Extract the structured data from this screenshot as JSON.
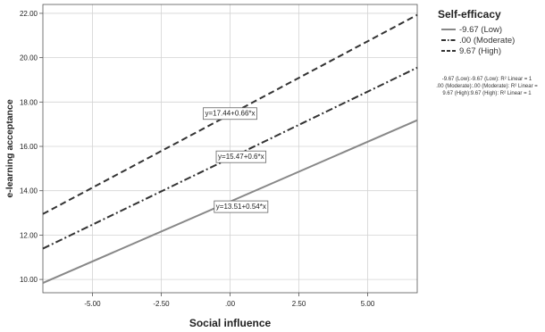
{
  "chart_data": {
    "type": "line",
    "xlabel": "Social influence",
    "ylabel": "e-learning acceptance",
    "xlim": [
      -6.8,
      6.8
    ],
    "ylim": [
      9.4,
      22.4
    ],
    "x_ticks": [
      -5.0,
      -2.5,
      0.0,
      2.5,
      5.0
    ],
    "x_tick_labels": [
      "-5.00",
      "-2.50",
      ".00",
      "2.50",
      "5.00"
    ],
    "y_ticks": [
      10.0,
      12.0,
      14.0,
      16.0,
      18.0,
      20.0,
      22.0
    ],
    "y_tick_labels": [
      "10.00",
      "12.00",
      "14.00",
      "16.00",
      "18.00",
      "20.00",
      "22.00"
    ],
    "grid": true,
    "legend": {
      "title": "Self-efficacy",
      "placement": "right",
      "entries": [
        "-9.67 (Low)",
        ".00 (Moderate)",
        "9.67 (High)"
      ],
      "note_lines": [
        "-9.67 (Low):-9.67 (Low): R² Linear = 1",
        ".00 (Moderate):.00 (Moderate): R² Linear =",
        "9.67 (High):9.67 (High): R² Linear = 1"
      ]
    },
    "series": [
      {
        "name": "-9.67 (Low)",
        "intercept": 13.51,
        "slope": 0.54,
        "x": [
          -6.8,
          6.8
        ],
        "y": [
          9.84,
          17.18
        ],
        "color": "#888888",
        "dash": "solid",
        "equation": "y=13.51+0.54*x",
        "label_at": {
          "x": 0.4,
          "y": 13.3
        }
      },
      {
        "name": ".00 (Moderate)",
        "intercept": 15.47,
        "slope": 0.6,
        "x": [
          -6.8,
          6.8
        ],
        "y": [
          11.39,
          19.55
        ],
        "color": "#333333",
        "dash": "dashdot",
        "equation": "y=15.47+0.6*x",
        "label_at": {
          "x": 0.4,
          "y": 15.55
        }
      },
      {
        "name": "9.67 (High)",
        "intercept": 17.44,
        "slope": 0.66,
        "x": [
          -6.8,
          6.8
        ],
        "y": [
          12.95,
          21.93
        ],
        "color": "#333333",
        "dash": "dashed",
        "equation": "y=17.44+0.66*x",
        "label_at": {
          "x": 0.0,
          "y": 17.5
        }
      }
    ]
  }
}
